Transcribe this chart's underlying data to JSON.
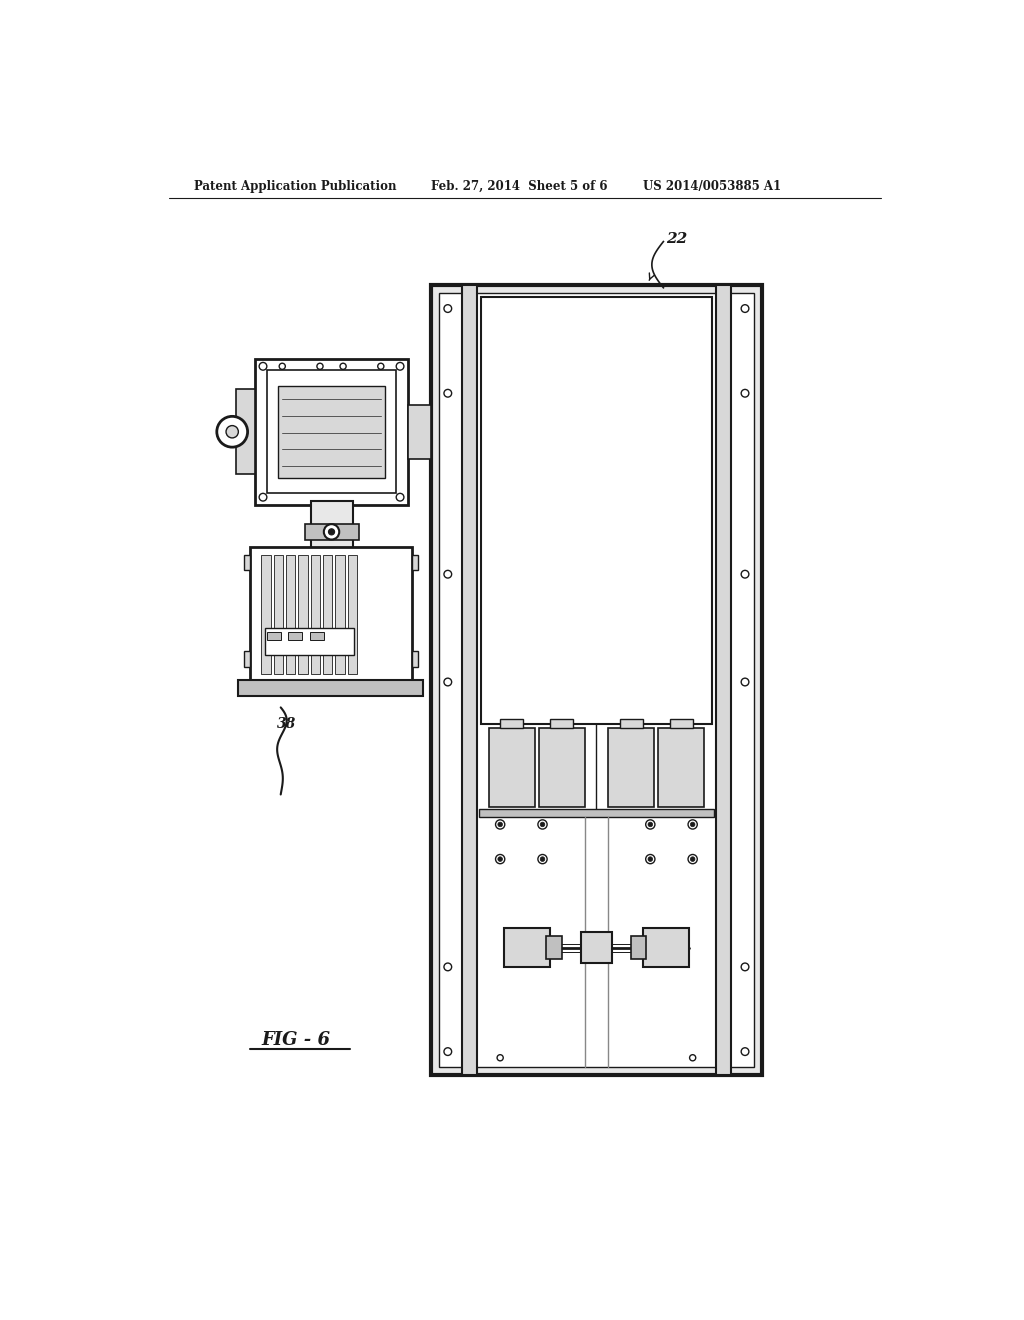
{
  "bg_color": "#ffffff",
  "line_color": "#1a1a1a",
  "header_text1": "Patent Application Publication",
  "header_text2": "Feb. 27, 2014  Sheet 5 of 6",
  "header_text3": "US 2014/0053885 A1",
  "fig_label": "FIG - 6",
  "ref_num_22": "22",
  "ref_num_38": "38",
  "gray_light": "#d8d8d8",
  "gray_mid": "#c0c0c0",
  "gray_panel": "#e8e8e8"
}
